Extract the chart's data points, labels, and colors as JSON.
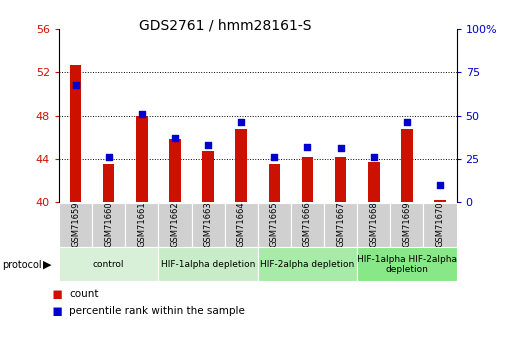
{
  "title": "GDS2761 / hmm28161-S",
  "samples": [
    "GSM71659",
    "GSM71660",
    "GSM71661",
    "GSM71662",
    "GSM71663",
    "GSM71664",
    "GSM71665",
    "GSM71666",
    "GSM71667",
    "GSM71668",
    "GSM71669",
    "GSM71670"
  ],
  "count_values": [
    52.7,
    43.5,
    48.0,
    45.8,
    44.7,
    46.8,
    43.5,
    44.2,
    44.2,
    43.7,
    46.8,
    40.2
  ],
  "percentile_values": [
    68,
    26,
    51,
    37,
    33,
    46,
    26,
    32,
    31,
    26,
    46,
    10
  ],
  "ylim_left": [
    40,
    56
  ],
  "ylim_right": [
    0,
    100
  ],
  "yticks_left": [
    40,
    44,
    48,
    52,
    56
  ],
  "yticks_right": [
    0,
    25,
    50,
    75,
    100
  ],
  "bar_color": "#cc1100",
  "dot_color": "#0000cc",
  "bg_color": "#ffffff",
  "grid_color": "#000000",
  "protocol_groups": [
    {
      "label": "control",
      "start": 0,
      "end": 2,
      "color": "#d8f0d8"
    },
    {
      "label": "HIF-1alpha depletion",
      "start": 3,
      "end": 5,
      "color": "#c8ecc8"
    },
    {
      "label": "HIF-2alpha depletion",
      "start": 6,
      "end": 8,
      "color": "#a8eaa8"
    },
    {
      "label": "HIF-1alpha HIF-2alpha\ndepletion",
      "start": 9,
      "end": 11,
      "color": "#88e888"
    }
  ],
  "ylabel_left_color": "#cc1100",
  "ylabel_right_color": "#0000cc",
  "bar_width": 0.35,
  "dot_size": 22,
  "sample_cell_color": "#d0d0d0",
  "title_fontsize": 10,
  "tick_fontsize": 8,
  "sample_fontsize": 6,
  "proto_fontsize": 6.5,
  "legend_fontsize": 7.5
}
